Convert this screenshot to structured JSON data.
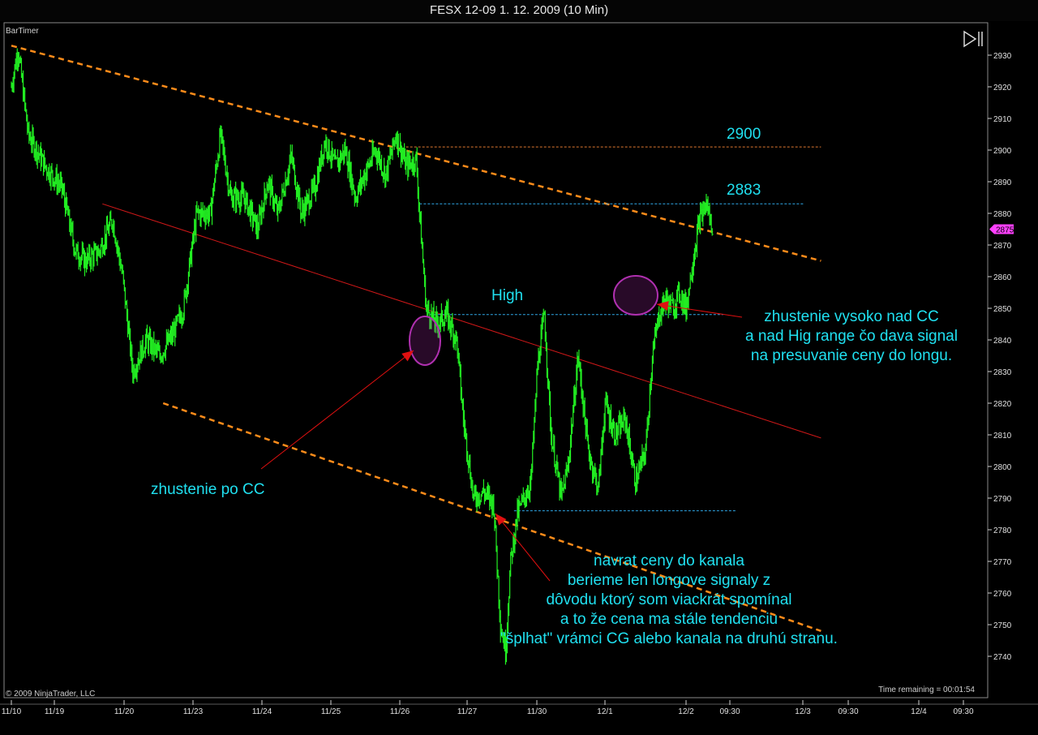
{
  "window": {
    "title": "FESX 12-09  1. 12. 2009 (10 Min)"
  },
  "labels": {
    "bartimer": "BarTimer",
    "copyright": "© 2009 NinjaTrader, LLC",
    "time_remaining": "Time remaining = 00:01:54",
    "current_price": "2875"
  },
  "levels": {
    "l2900": "2900",
    "l2883": "2883",
    "high": "High"
  },
  "annotations": {
    "right_line1": "zhustenie vysoko nad CC",
    "right_line2": "a nad Hig range čo dava signal",
    "right_line3": "na presuvanie ceny do longu.",
    "left": "zhustenie po CC",
    "bottom_line1": "navrat ceny do kanala",
    "bottom_line2": "berieme len longove signaly z",
    "bottom_line3": "dôvodu ktorý som viackrát spomínal",
    "bottom_line4": "a to že cena ma stále tendenciu",
    "bottom_line5": "\"šplhat\" vrámci CG alebo kanala na druhú stranu."
  },
  "colors": {
    "background": "#000000",
    "bars": "#22ee22",
    "channel": "#ff8c1a",
    "midline": "#d01818",
    "levels": "#2fa8e8",
    "text": "#20e0f0",
    "circles": "#b030b0",
    "arrows": "#e01010",
    "price_marker": "#ff40ff"
  },
  "chart_data": {
    "type": "candlestick",
    "title": "FESX 12-09  1. 12. 2009 (10 Min)",
    "ylim": [
      2730,
      2935
    ],
    "yticks": [
      2740,
      2750,
      2760,
      2770,
      2780,
      2790,
      2800,
      2810,
      2820,
      2830,
      2840,
      2850,
      2860,
      2870,
      2880,
      2890,
      2900,
      2910,
      2920,
      2930
    ],
    "xticks": [
      "11/10",
      "11/19",
      "11/20",
      "11/23",
      "11/24",
      "11/25",
      "11/26",
      "11/27",
      "11/30",
      "12/1",
      "12/2",
      "09:30",
      "12/3",
      "09:30",
      "12/4",
      "09:30"
    ],
    "price_path": [
      [
        0,
        2920
      ],
      [
        4,
        2932
      ],
      [
        10,
        2905
      ],
      [
        20,
        2895
      ],
      [
        30,
        2888
      ],
      [
        38,
        2868
      ],
      [
        44,
        2865
      ],
      [
        52,
        2868
      ],
      [
        60,
        2878
      ],
      [
        66,
        2860
      ],
      [
        72,
        2830
      ],
      [
        80,
        2840
      ],
      [
        88,
        2835
      ],
      [
        96,
        2842
      ],
      [
        102,
        2850
      ],
      [
        110,
        2880
      ],
      [
        118,
        2880
      ],
      [
        124,
        2905
      ],
      [
        130,
        2885
      ],
      [
        138,
        2885
      ],
      [
        146,
        2875
      ],
      [
        152,
        2890
      ],
      [
        158,
        2880
      ],
      [
        166,
        2898
      ],
      [
        172,
        2880
      ],
      [
        180,
        2888
      ],
      [
        186,
        2903
      ],
      [
        192,
        2895
      ],
      [
        198,
        2900
      ],
      [
        204,
        2885
      ],
      [
        210,
        2893
      ],
      [
        216,
        2900
      ],
      [
        222,
        2892
      ],
      [
        228,
        2905
      ],
      [
        234,
        2895
      ],
      [
        240,
        2897
      ],
      [
        242,
        2880
      ],
      [
        246,
        2850
      ],
      [
        252,
        2845
      ],
      [
        258,
        2848
      ],
      [
        264,
        2840
      ],
      [
        268,
        2815
      ],
      [
        274,
        2790
      ],
      [
        280,
        2792
      ],
      [
        286,
        2788
      ],
      [
        290,
        2750
      ],
      [
        293,
        2742
      ],
      [
        296,
        2770
      ],
      [
        300,
        2785
      ],
      [
        304,
        2790
      ],
      [
        308,
        2795
      ],
      [
        312,
        2832
      ],
      [
        316,
        2848
      ],
      [
        320,
        2810
      ],
      [
        326,
        2790
      ],
      [
        330,
        2800
      ],
      [
        336,
        2835
      ],
      [
        342,
        2805
      ],
      [
        348,
        2793
      ],
      [
        352,
        2820
      ],
      [
        358,
        2810
      ],
      [
        364,
        2815
      ],
      [
        370,
        2795
      ],
      [
        376,
        2805
      ],
      [
        380,
        2835
      ],
      [
        384,
        2848
      ],
      [
        388,
        2853
      ],
      [
        392,
        2850
      ],
      [
        396,
        2855
      ],
      [
        400,
        2850
      ],
      [
        404,
        2865
      ],
      [
        408,
        2878
      ],
      [
        412,
        2883
      ],
      [
        416,
        2875
      ]
    ],
    "lines": [
      {
        "name": "channel-top",
        "from": [
          0,
          2933
        ],
        "to": [
          480,
          2865
        ],
        "style": "dashed"
      },
      {
        "name": "channel-bottom",
        "from": [
          90,
          2820
        ],
        "to": [
          480,
          2748
        ],
        "style": "dashed"
      },
      {
        "name": "channel-mid",
        "from": [
          54,
          2883
        ],
        "to": [
          480,
          2809
        ],
        "style": "solid"
      },
      {
        "name": "level-2900",
        "from": [
          234,
          2901
        ],
        "to": [
          480,
          2901
        ],
        "style": "dotted"
      },
      {
        "name": "level-2883",
        "from": [
          242,
          2883
        ],
        "to": [
          470,
          2883
        ],
        "style": "dotted"
      },
      {
        "name": "level-high",
        "from": [
          248,
          2848
        ],
        "to": [
          422,
          2848
        ],
        "style": "dotted"
      },
      {
        "name": "level-low",
        "from": [
          298,
          2786
        ],
        "to": [
          430,
          2786
        ],
        "style": "dotted"
      }
    ],
    "current_price": 2875
  }
}
